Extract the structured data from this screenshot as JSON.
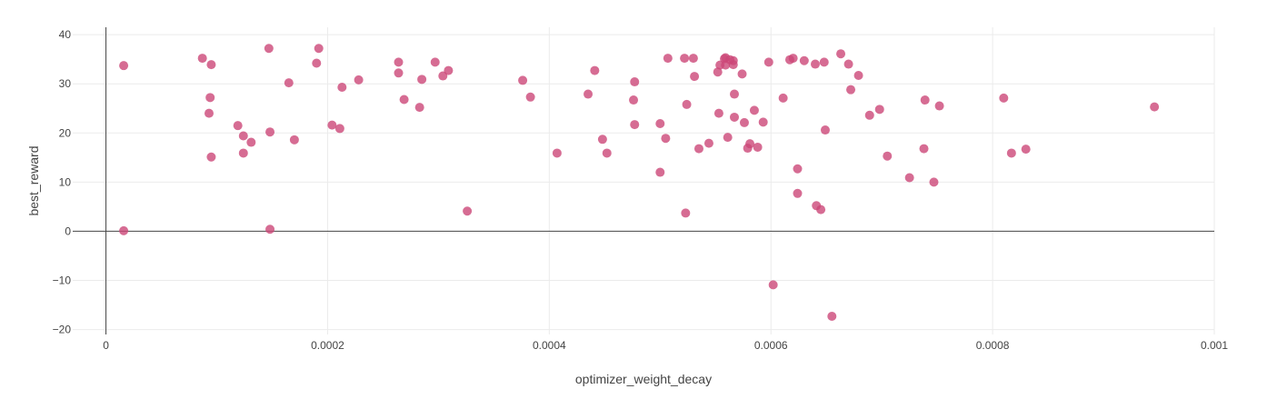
{
  "chart_data": {
    "type": "scatter",
    "title": "",
    "xlabel": "optimizer_weight_decay",
    "ylabel": "best_reward",
    "xlim": [
      -3e-05,
      0.001
    ],
    "ylim": [
      -21,
      41.5
    ],
    "xticks": [
      0,
      0.0002,
      0.0004,
      0.0006,
      0.0008,
      0.001
    ],
    "xtick_labels": [
      "0",
      "0.0002",
      "0.0004",
      "0.0006",
      "0.0008",
      "0.001"
    ],
    "yticks": [
      -20,
      -10,
      0,
      10,
      20,
      30,
      40
    ],
    "ytick_labels": [
      "−20",
      "−10",
      "0",
      "10",
      "20",
      "30",
      "40"
    ],
    "grid": true,
    "marker_color": "#cc4778",
    "series": [
      {
        "points": [
          [
            1.6e-05,
            33.7
          ],
          [
            1.6e-05,
            0.1
          ],
          [
            8.7e-05,
            35.2
          ],
          [
            9.3e-05,
            24.0
          ],
          [
            9.4e-05,
            27.2
          ],
          [
            9.5e-05,
            15.1
          ],
          [
            9.5e-05,
            33.9
          ],
          [
            0.000119,
            21.5
          ],
          [
            0.000124,
            19.4
          ],
          [
            0.000124,
            15.9
          ],
          [
            0.000131,
            18.1
          ],
          [
            0.000147,
            37.2
          ],
          [
            0.000148,
            20.2
          ],
          [
            0.000148,
            0.4
          ],
          [
            0.000165,
            30.2
          ],
          [
            0.00017,
            18.6
          ],
          [
            0.00019,
            34.2
          ],
          [
            0.000192,
            37.2
          ],
          [
            0.000204,
            21.6
          ],
          [
            0.000211,
            20.9
          ],
          [
            0.000213,
            29.3
          ],
          [
            0.000228,
            30.8
          ],
          [
            0.000264,
            34.4
          ],
          [
            0.000264,
            32.2
          ],
          [
            0.000269,
            26.8
          ],
          [
            0.000283,
            25.2
          ],
          [
            0.000285,
            30.9
          ],
          [
            0.000297,
            34.4
          ],
          [
            0.000304,
            31.6
          ],
          [
            0.000309,
            32.7
          ],
          [
            0.000326,
            4.1
          ],
          [
            0.000376,
            30.7
          ],
          [
            0.000383,
            27.3
          ],
          [
            0.000407,
            15.9
          ],
          [
            0.000435,
            27.9
          ],
          [
            0.000441,
            32.7
          ],
          [
            0.000448,
            18.7
          ],
          [
            0.000452,
            15.9
          ],
          [
            0.000476,
            26.7
          ],
          [
            0.000477,
            21.7
          ],
          [
            0.000477,
            30.4
          ],
          [
            0.0005,
            12.0
          ],
          [
            0.0005,
            21.9
          ],
          [
            0.000505,
            18.9
          ],
          [
            0.000507,
            35.2
          ],
          [
            0.000522,
            35.2
          ],
          [
            0.000523,
            3.7
          ],
          [
            0.000524,
            25.8
          ],
          [
            0.00053,
            35.2
          ],
          [
            0.000531,
            31.5
          ],
          [
            0.000535,
            16.8
          ],
          [
            0.000544,
            17.9
          ],
          [
            0.000552,
            32.4
          ],
          [
            0.000553,
            24.0
          ],
          [
            0.000554,
            33.8
          ],
          [
            0.000558,
            35.1
          ],
          [
            0.000559,
            35.3
          ],
          [
            0.000559,
            33.8
          ],
          [
            0.000561,
            19.1
          ],
          [
            0.000563,
            34.9
          ],
          [
            0.000566,
            34.7
          ],
          [
            0.000566,
            33.9
          ],
          [
            0.000567,
            27.9
          ],
          [
            0.000567,
            23.2
          ],
          [
            0.000574,
            32.0
          ],
          [
            0.000576,
            22.1
          ],
          [
            0.000579,
            16.9
          ],
          [
            0.000581,
            17.8
          ],
          [
            0.000585,
            24.6
          ],
          [
            0.000588,
            17.1
          ],
          [
            0.000593,
            22.2
          ],
          [
            0.000598,
            34.4
          ],
          [
            0.000602,
            -10.9
          ],
          [
            0.000611,
            27.1
          ],
          [
            0.000617,
            34.9
          ],
          [
            0.00062,
            35.2
          ],
          [
            0.000624,
            12.7
          ],
          [
            0.000624,
            7.7
          ],
          [
            0.00063,
            34.7
          ],
          [
            0.00064,
            34.0
          ],
          [
            0.000641,
            5.2
          ],
          [
            0.000645,
            4.4
          ],
          [
            0.000648,
            34.4
          ],
          [
            0.000649,
            20.6
          ],
          [
            0.000655,
            -17.3
          ],
          [
            0.000663,
            36.1
          ],
          [
            0.00067,
            34.0
          ],
          [
            0.000672,
            28.8
          ],
          [
            0.000679,
            31.7
          ],
          [
            0.000689,
            23.6
          ],
          [
            0.000698,
            24.8
          ],
          [
            0.000705,
            15.3
          ],
          [
            0.000725,
            10.9
          ],
          [
            0.000738,
            16.8
          ],
          [
            0.000739,
            26.7
          ],
          [
            0.000747,
            10.0
          ],
          [
            0.000752,
            25.5
          ],
          [
            0.00081,
            27.1
          ],
          [
            0.000817,
            15.9
          ],
          [
            0.00083,
            16.7
          ],
          [
            0.000946,
            25.3
          ]
        ]
      }
    ]
  }
}
